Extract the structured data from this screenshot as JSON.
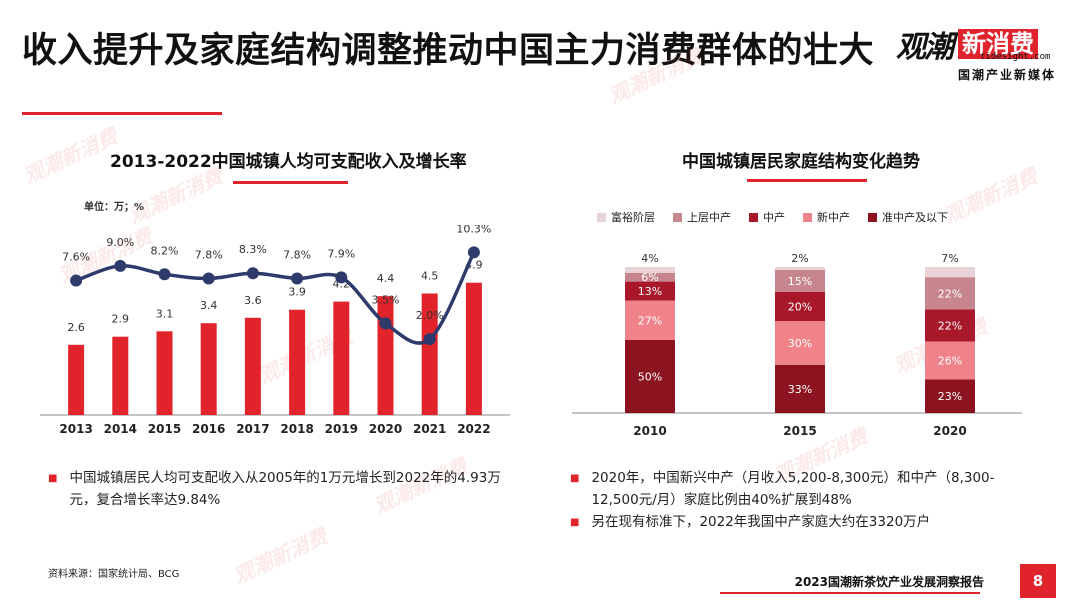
{
  "page": {
    "title": "收入提升及家庭结构调整推动中国主力消费群体的壮大",
    "logo": {
      "name": "观潮",
      "box": "新消费",
      "url": "tidesight.com",
      "tagline": "国潮产业新媒体"
    },
    "left_chart_title": "2013-2022中国城镇人均可支配收入及增长率",
    "left_unit": "单位：万；%",
    "right_chart_title": "中国城镇居民家庭结构变化趋势",
    "left_bullets": [
      "中国城镇居民人均可支配收入从2005年的1万元增长到2022年的4.93万元，复合增长率达9.84%"
    ],
    "right_bullets": [
      "2020年，中国新兴中产（月收入5,200-8,300元）和中产（8,300-12,500元/月）家庭比例由40%扩展到48%",
      "另在现有标准下，2022年我国中产家庭大约在3320万户"
    ],
    "source": "资料来源：国家统计局、BCG",
    "footer": "2023国潮新茶饮产业发展洞察报告",
    "page_number": "8",
    "watermark": "观潮新消费"
  },
  "chart_data": [
    {
      "type": "bar",
      "title": "2013-2022中国城镇人均可支配收入及增长率",
      "categories": [
        "2013",
        "2014",
        "2015",
        "2016",
        "2017",
        "2018",
        "2019",
        "2020",
        "2021",
        "2022"
      ],
      "bar_labels": [
        "2.6",
        "2.9",
        "3.1",
        "3.4",
        "3.6",
        "3.9",
        "4.2",
        "4.4",
        "4.5",
        "4.9"
      ],
      "series": [
        {
          "values": [
            2.6,
            2.9,
            3.1,
            3.4,
            3.6,
            3.9,
            4.2,
            4.4,
            4.5,
            4.9
          ],
          "color": "#e1242b"
        },
        {
          "type": "line",
          "values": [
            7.6,
            9.0,
            8.2,
            7.8,
            8.3,
            7.8,
            7.9,
            3.5,
            2.0,
            10.3
          ],
          "labels": [
            "7.6%",
            "9.0%",
            "8.2%",
            "7.8%",
            "8.3%",
            "7.8%",
            "7.9%",
            "3.5%",
            "2.0%",
            "10.3%"
          ],
          "color": "#2e3a6b"
        }
      ],
      "grid": false
    },
    {
      "type": "bar",
      "stacked": true,
      "title": "中国城镇居民家庭结构变化趋势",
      "categories": [
        "2010",
        "2015",
        "2020"
      ],
      "series": [
        {
          "name": "准中产及以下",
          "values": [
            50,
            33,
            23
          ],
          "color": "#8b1420"
        },
        {
          "name": "新中产",
          "values": [
            27,
            30,
            26
          ],
          "color": "#f0838a"
        },
        {
          "name": "中产",
          "values": [
            13,
            20,
            22
          ],
          "color": "#a8182a"
        },
        {
          "name": "上层中产",
          "values": [
            6,
            15,
            22
          ],
          "color": "#c7868e"
        },
        {
          "name": "富裕阶层",
          "values": [
            4,
            2,
            7
          ],
          "color": "#e8d3d6"
        }
      ],
      "legend_order": [
        "富裕阶层",
        "上层中产",
        "中产",
        "新中产",
        "准中产及以下"
      ],
      "legend_position": "top",
      "ylim": [
        0,
        100
      ],
      "grid": false
    }
  ]
}
